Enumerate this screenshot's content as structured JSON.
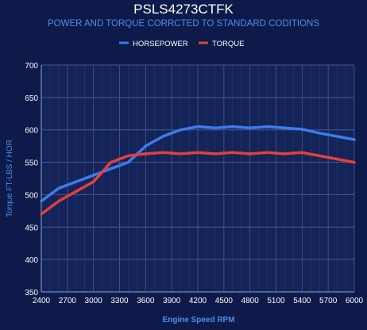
{
  "chart_data": {
    "type": "line",
    "title": "PSLS4273CTFK",
    "subtitle": "POWER AND TORQUE CORRCTED TO STANDARD CODITIONS",
    "xlabel": "Engine Speed RPM",
    "ylabel": "Torque FT-LBS / HOR",
    "xlim": [
      2400,
      6000
    ],
    "ylim": [
      350,
      700
    ],
    "x_ticks": [
      "2400",
      "2700",
      "3000",
      "3300",
      "3600",
      "3900",
      "4200",
      "4500",
      "4800",
      "5100",
      "5400",
      "5700",
      "6000"
    ],
    "y_ticks": [
      "350",
      "400",
      "450",
      "500",
      "550",
      "600",
      "650",
      "700"
    ],
    "grid": true,
    "legend_position": "top-center",
    "x": [
      2400,
      2600,
      2800,
      3000,
      3200,
      3400,
      3600,
      3800,
      4000,
      4200,
      4400,
      4600,
      4800,
      5000,
      5200,
      5400,
      5600,
      5800,
      6000
    ],
    "series": [
      {
        "name": "HORSEPOWER",
        "color": "#3d7bea",
        "values": [
          490,
          510,
          520,
          530,
          540,
          550,
          575,
          590,
          600,
          605,
          603,
          605,
          603,
          605,
          603,
          601,
          595,
          590,
          585
        ]
      },
      {
        "name": "TORQUE",
        "color": "#e2403a",
        "values": [
          470,
          490,
          505,
          520,
          550,
          560,
          563,
          565,
          563,
          565,
          563,
          565,
          563,
          565,
          563,
          565,
          560,
          555,
          550
        ]
      }
    ]
  }
}
